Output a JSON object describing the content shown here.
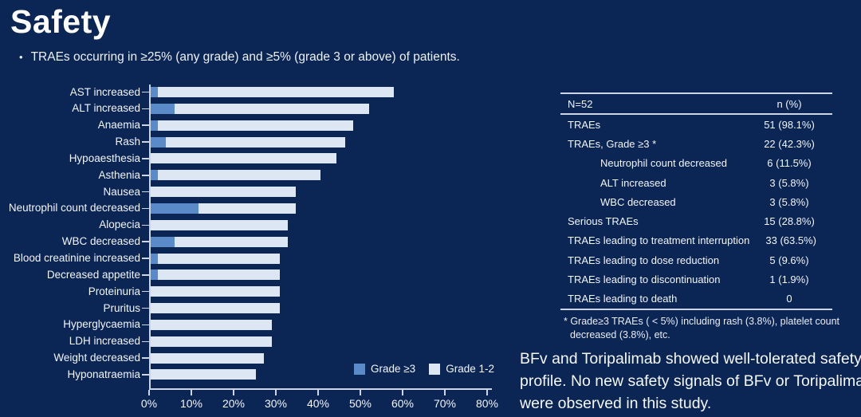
{
  "slide": {
    "title": "Safety",
    "bullet_marker": "•",
    "bullet": "TRAEs occurring in ≥25% (any grade) and ≥5% (grade 3 or above) of patients.",
    "conclusion": "BFv and Toripalimab showed well-tolerated safety profile. No new safety signals of BFv or Toripalimab were observed in this study."
  },
  "colors": {
    "background": "#0b2554",
    "grade3_blue": "#5b8ac8",
    "grade12_light": "#dde7f3",
    "axis": "#ccd5e3",
    "text": "#f2f5fa"
  },
  "chart_data": {
    "type": "bar",
    "orientation": "horizontal",
    "stacked": true,
    "categories": [
      "AST increased",
      "ALT increased",
      "Anaemia",
      "Rash",
      "Hypoaesthesia",
      "Asthenia",
      "Nausea",
      "Neutrophil count decreased",
      "Alopecia",
      "WBC decreased",
      "Blood creatinine increased",
      "Decreased appetite",
      "Proteinuria",
      "Pruritus",
      "Hyperglycaemia",
      "LDH increased",
      "Weight decreased",
      "Hyponatraemia"
    ],
    "series": [
      {
        "name": "Grade ≥3",
        "color": "#5b8ac8",
        "values": [
          1.9,
          5.8,
          1.9,
          3.8,
          0,
          1.9,
          0,
          11.5,
          0,
          5.8,
          1.9,
          1.9,
          0,
          0,
          0,
          0,
          0,
          0
        ]
      },
      {
        "name": "Grade 1-2",
        "color": "#dde7f3",
        "values": [
          55.8,
          46.1,
          46.2,
          42.4,
          44.2,
          38.5,
          34.6,
          23.1,
          32.7,
          26.9,
          28.9,
          28.9,
          30.8,
          30.8,
          28.8,
          28.8,
          26.9,
          25.0
        ]
      }
    ],
    "totals": [
      57.7,
      51.9,
      48.1,
      46.2,
      44.2,
      40.4,
      34.6,
      34.6,
      32.7,
      32.7,
      30.8,
      30.8,
      30.8,
      30.8,
      28.8,
      28.8,
      26.9,
      25.0
    ],
    "xlim": [
      0,
      80
    ],
    "x_ticks": [
      "0%",
      "10%",
      "20%",
      "30%",
      "40%",
      "50%",
      "60%",
      "70%",
      "80%"
    ],
    "xlabel": "",
    "ylabel": "",
    "grid": false,
    "legend_position": "inside-bottom-right"
  },
  "table": {
    "header": {
      "left": "N=52",
      "right": "n (%)"
    },
    "rows": [
      {
        "label": "TRAEs",
        "value": "51 (98.1%)",
        "indent": false
      },
      {
        "label": "TRAEs, Grade ≥3 *",
        "value": "22 (42.3%)",
        "indent": false
      },
      {
        "label": "Neutrophil count decreased",
        "value": "6 (11.5%)",
        "indent": true
      },
      {
        "label": "ALT increased",
        "value": "3 (5.8%)",
        "indent": true
      },
      {
        "label": "WBC decreased",
        "value": "3 (5.8%)",
        "indent": true
      },
      {
        "label": "Serious TRAEs",
        "value": "15 (28.8%)",
        "indent": false
      },
      {
        "label": "TRAEs leading to treatment interruption",
        "value": "33 (63.5%)",
        "indent": false
      },
      {
        "label": "TRAEs leading to dose reduction",
        "value": "5 (9.6%)",
        "indent": false
      },
      {
        "label": "TRAEs leading to discontinuation",
        "value": "1 (1.9%)",
        "indent": false
      },
      {
        "label": "TRAEs leading to death",
        "value": "0",
        "indent": false
      }
    ],
    "footnote": "* Grade≥3 TRAEs ( < 5%) including rash (3.8%), platelet count decreased (3.8%), etc."
  }
}
